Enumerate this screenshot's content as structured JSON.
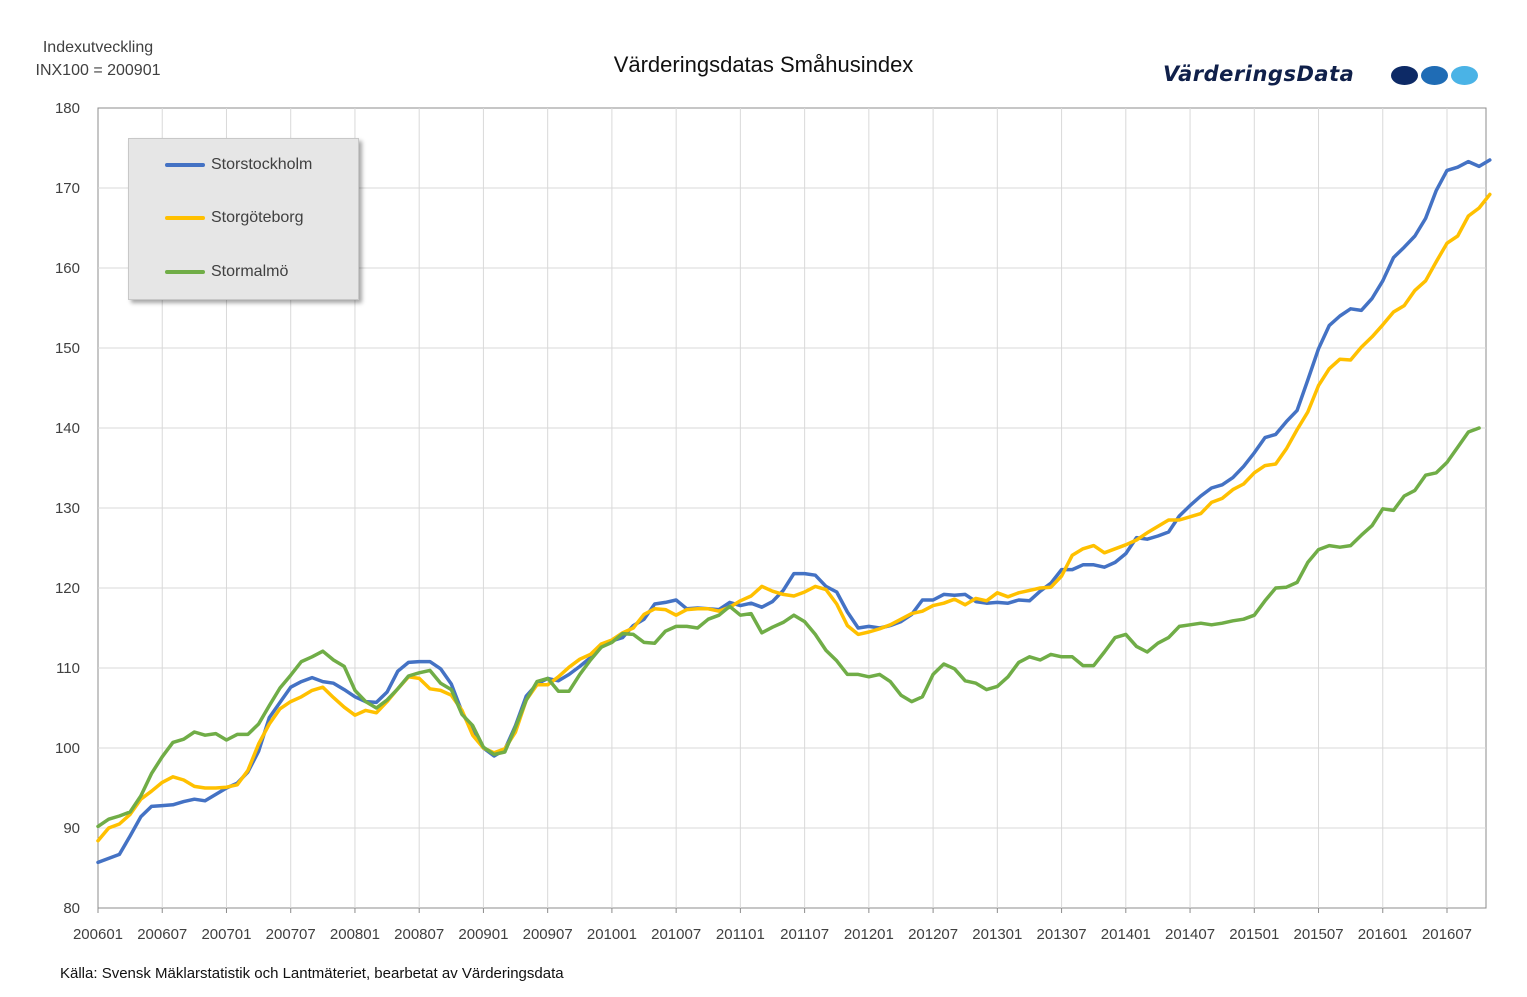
{
  "header": {
    "ylabel_line1": "Indexutveckling",
    "ylabel_line2": "INX100 = 200901",
    "title": "Värderingsdatas Småhusindex",
    "logo_text": "VärderingsData",
    "logo_colors": [
      "#0d2a66",
      "#1f6cb5",
      "#4ab3e6"
    ]
  },
  "footer": {
    "source": "Källa: Svensk Mäklarstatistik och Lantmäteriet, bearbetat av Värderingsdata"
  },
  "chart_data": {
    "type": "line",
    "title": "Värderingsdatas Småhusindex",
    "ylabel": "Indexutveckling INX100 = 200901",
    "xlabel": "",
    "grid": true,
    "legend_position": "top-left",
    "ylim": [
      80,
      180
    ],
    "yticks": [
      80,
      90,
      100,
      110,
      120,
      130,
      140,
      150,
      160,
      170,
      180
    ],
    "x_tick_labels": [
      "200601",
      "200607",
      "200701",
      "200707",
      "200801",
      "200807",
      "200901",
      "200907",
      "201001",
      "201007",
      "201101",
      "201107",
      "201201",
      "201207",
      "201301",
      "201307",
      "201401",
      "201407",
      "201501",
      "201507",
      "201601",
      "201607"
    ],
    "x_start": "200601",
    "x_step": "1 month",
    "series": [
      {
        "name": "Storstockholm",
        "color": "#4472c4",
        "values": [
          85.7,
          86.2,
          86.7,
          89.0,
          91.4,
          92.7,
          92.8,
          92.9,
          93.3,
          93.6,
          93.4,
          94.2,
          95.0,
          95.6,
          97.0,
          99.6,
          103.8,
          105.7,
          107.6,
          108.3,
          108.8,
          108.3,
          108.1,
          107.3,
          106.4,
          105.8,
          105.7,
          107.0,
          109.6,
          110.7,
          110.8,
          110.8,
          109.9,
          108.0,
          104.5,
          102.0,
          100.0,
          99.0,
          99.8,
          102.8,
          106.5,
          108.0,
          108.7,
          108.4,
          109.2,
          110.2,
          111.3,
          112.6,
          113.4,
          113.8,
          115.3,
          116.1,
          118.0,
          118.2,
          118.5,
          117.4,
          117.5,
          117.4,
          117.3,
          118.2,
          117.8,
          118.1,
          117.6,
          118.3,
          119.7,
          121.8,
          121.8,
          121.6,
          120.2,
          119.5,
          117.0,
          115.0,
          115.2,
          115.0,
          115.3,
          115.8,
          116.7,
          118.5,
          118.5,
          119.2,
          119.1,
          119.2,
          118.3,
          118.1,
          118.2,
          118.1,
          118.5,
          118.4,
          119.6,
          120.6,
          122.3,
          122.3,
          122.9,
          122.9,
          122.6,
          123.2,
          124.3,
          126.3,
          126.1,
          126.5,
          127.0,
          129.0,
          130.3,
          131.5,
          132.5,
          132.9,
          133.8,
          135.2,
          136.9,
          138.8,
          139.2,
          140.8,
          142.2,
          146.0,
          149.9,
          152.8,
          154.0,
          154.9,
          154.7,
          156.2,
          158.4,
          161.3,
          162.6,
          164.0,
          166.2,
          169.7,
          172.2,
          172.6,
          173.3,
          172.7,
          173.5
        ]
      },
      {
        "name": "Storgöteborg",
        "color": "#ffc000",
        "values": [
          88.4,
          90.0,
          90.5,
          91.7,
          93.6,
          94.6,
          95.7,
          96.4,
          96.0,
          95.2,
          95.0,
          95.0,
          95.1,
          95.4,
          97.2,
          100.5,
          103.0,
          104.9,
          105.8,
          106.4,
          107.2,
          107.6,
          106.3,
          105.1,
          104.1,
          104.7,
          104.4,
          105.8,
          107.4,
          108.9,
          108.7,
          107.4,
          107.2,
          106.6,
          104.7,
          101.6,
          100.0,
          99.4,
          99.9,
          102.0,
          106.0,
          107.9,
          107.9,
          108.9,
          110.1,
          111.1,
          111.7,
          113.0,
          113.5,
          114.4,
          115.0,
          116.7,
          117.4,
          117.3,
          116.6,
          117.3,
          117.4,
          117.4,
          117.1,
          117.6,
          118.4,
          119.0,
          120.2,
          119.6,
          119.2,
          119.0,
          119.5,
          120.2,
          119.8,
          118.0,
          115.3,
          114.2,
          114.5,
          114.9,
          115.4,
          116.1,
          116.8,
          117.1,
          117.8,
          118.1,
          118.6,
          117.9,
          118.7,
          118.4,
          119.4,
          118.9,
          119.4,
          119.7,
          120.0,
          120.1,
          121.5,
          124.1,
          124.9,
          125.3,
          124.4,
          124.9,
          125.4,
          126.0,
          126.9,
          127.7,
          128.5,
          128.5,
          128.9,
          129.3,
          130.7,
          131.2,
          132.3,
          133.0,
          134.4,
          135.3,
          135.5,
          137.4,
          139.8,
          142.0,
          145.3,
          147.4,
          148.6,
          148.5,
          150.1,
          151.4,
          152.9,
          154.5,
          155.3,
          157.2,
          158.4,
          160.8,
          163.1,
          164.0,
          166.5,
          167.5,
          169.2
        ]
      },
      {
        "name": "Stormalmö",
        "color": "#70ad47",
        "values": [
          90.2,
          91.1,
          91.5,
          92.0,
          94.0,
          96.8,
          98.9,
          100.7,
          101.1,
          102.0,
          101.6,
          101.8,
          101.0,
          101.7,
          101.7,
          103.0,
          105.3,
          107.5,
          109.1,
          110.8,
          111.4,
          112.1,
          111.0,
          110.2,
          107.2,
          105.8,
          105.0,
          106.0,
          107.4,
          109.0,
          109.4,
          109.7,
          108.1,
          107.3,
          104.2,
          102.8,
          100.1,
          99.2,
          99.5,
          102.6,
          106.0,
          108.3,
          108.7,
          107.1,
          107.1,
          109.2,
          111.0,
          112.6,
          113.2,
          114.3,
          114.2,
          113.2,
          113.1,
          114.6,
          115.2,
          115.2,
          115.0,
          116.1,
          116.6,
          117.7,
          116.6,
          116.8,
          114.4,
          115.1,
          115.7,
          116.6,
          115.8,
          114.2,
          112.2,
          110.9,
          109.2,
          109.2,
          108.9,
          109.2,
          108.3,
          106.6,
          105.8,
          106.4,
          109.2,
          110.5,
          109.9,
          108.4,
          108.1,
          107.3,
          107.7,
          108.9,
          110.7,
          111.4,
          111.0,
          111.7,
          111.4,
          111.4,
          110.3,
          110.3,
          112.0,
          113.8,
          114.2,
          112.7,
          112.0,
          113.1,
          113.8,
          115.2,
          115.4,
          115.6,
          115.4,
          115.6,
          115.9,
          116.1,
          116.6,
          118.4,
          120.0,
          120.1,
          120.7,
          123.2,
          124.8,
          125.3,
          125.1,
          125.3,
          126.6,
          127.8,
          129.9,
          129.7,
          131.5,
          132.2,
          134.1,
          134.4,
          135.7,
          137.6,
          139.5,
          140.0
        ]
      }
    ]
  }
}
